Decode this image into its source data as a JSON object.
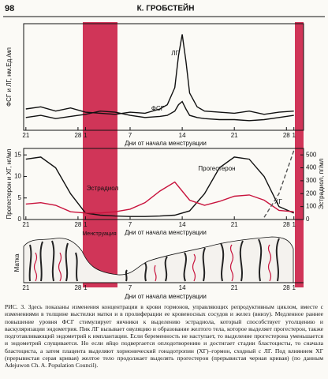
{
  "header": {
    "page_number": "98",
    "author": "К. ГРОБСТЕЙН"
  },
  "chart_data": [
    {
      "type": "line",
      "y_label": "ФСГ и ЛГ, нм.Ед./мл",
      "x_label": "Дни от начала менструации",
      "x": [
        0,
        2,
        4,
        6,
        8,
        10,
        12,
        14,
        16,
        18,
        19,
        20,
        20.5,
        21,
        21.5,
        22,
        23,
        24,
        26,
        28,
        30,
        32,
        34,
        36
      ],
      "xlim": [
        -0.3,
        37.3
      ],
      "ylim": [
        0,
        100
      ],
      "xticks": [
        {
          "value": 0,
          "label": "21"
        },
        {
          "value": 7,
          "label": "28"
        },
        {
          "value": 8,
          "label": "1"
        },
        {
          "value": 14,
          "label": "7"
        },
        {
          "value": 21,
          "label": "14"
        },
        {
          "value": 28,
          "label": "21"
        },
        {
          "value": 35,
          "label": "28"
        },
        {
          "value": 36,
          "label": "1"
        }
      ],
      "series": [
        {
          "name": "ЛГ",
          "color": "#111111",
          "values": [
            20,
            22,
            18,
            21,
            17,
            16,
            15,
            17,
            16,
            20,
            24,
            40,
            70,
            90,
            65,
            35,
            22,
            18,
            17,
            16,
            18,
            15,
            17,
            18
          ]
        },
        {
          "name": "ФСГ",
          "color": "#111111",
          "values": [
            12,
            14,
            11,
            13,
            15,
            18,
            17,
            14,
            12,
            13,
            14,
            18,
            24,
            27,
            20,
            14,
            12,
            11,
            10,
            10,
            9,
            10,
            12,
            14
          ]
        }
      ]
    },
    {
      "type": "line",
      "y_label": "Прогестерон и ХГ, нг/мл",
      "y2_label": "Эстрадиол, пг/мл",
      "x_label": "Дни от начала менструации",
      "x": [
        0,
        2,
        4,
        6,
        8,
        10,
        12,
        14,
        16,
        18,
        20,
        22,
        24,
        26,
        28,
        30,
        32,
        34,
        36
      ],
      "xlim": [
        -0.3,
        37.3
      ],
      "ylim": [
        0,
        16.5
      ],
      "yticks": [
        0,
        5,
        10,
        15
      ],
      "y2lim": [
        0,
        550
      ],
      "y2ticks": [
        0,
        100,
        200,
        300,
        400,
        500
      ],
      "xticks": [
        {
          "value": 0,
          "label": "21"
        },
        {
          "value": 7,
          "label": "28"
        },
        {
          "value": 8,
          "label": "1"
        },
        {
          "value": 14,
          "label": "7"
        },
        {
          "value": 21,
          "label": "14"
        },
        {
          "value": 28,
          "label": "21"
        },
        {
          "value": 35,
          "label": "28"
        },
        {
          "value": 36,
          "label": "1"
        }
      ],
      "series": [
        {
          "name": "Прогестерон",
          "color": "#111111",
          "values": [
            14,
            14.5,
            12,
            6,
            1.5,
            1,
            0.8,
            0.7,
            0.7,
            0.8,
            1,
            2,
            6,
            12,
            14.5,
            14,
            10,
            3,
            1.5
          ]
        },
        {
          "name": "Эстрадиол",
          "color": "#c8123c",
          "axis": "y2",
          "values": [
            120,
            130,
            110,
            60,
            50,
            50,
            60,
            80,
            130,
            220,
            290,
            150,
            110,
            140,
            180,
            190,
            150,
            70,
            60
          ]
        },
        {
          "name": "ХГ",
          "color": "#555555",
          "linestyle": "dashed",
          "values": [
            null,
            null,
            null,
            null,
            null,
            null,
            null,
            null,
            null,
            null,
            null,
            null,
            null,
            null,
            null,
            null,
            0.5,
            6,
            16
          ]
        }
      ]
    }
  ],
  "diagram": {
    "uterus_label": "Матка",
    "menstruation_label": "Менструация",
    "x_label": "Дни от начала менструации",
    "xticks": [
      "21",
      "28",
      "1",
      "7",
      "14",
      "21",
      "28",
      "1"
    ]
  },
  "caption": "РИС. 3. Здесь показаны изменения концентрации в крови гормонов, управляющих репродуктивным циклом, вместе с изменениями в толщине выстилки матки и в пролиферации ее кровеносных сосудов и желез (внизу). Медленное раннее повышение уровня ФСГ стимулирует яичники к выделению эстрадиола, который способствует утолщению и васкуляризации эндометрия. Пик ЛГ вызывает овуляцию и образование желтого тела, которое выделяет прогестерон, также подготавливающий эндометрий к имплантации. Если беременность не наступает, то выделение прогестерона уменьшается и эндометрий слущивается. Но если яйцо подвергается оплодотворению и достигает стадии бластоцисты, то сначала бластоциста, а затем плацента выделяют хорионический гонадотропин (ХГ)–гормон, сходный с ЛГ. Под влиянием ХГ (прерывистая серая кривая) желтое тело продолжает выделять прогестерон (прерывистая черная кривая) (по данным Adejuwon Ch. A. Population Council)."
}
